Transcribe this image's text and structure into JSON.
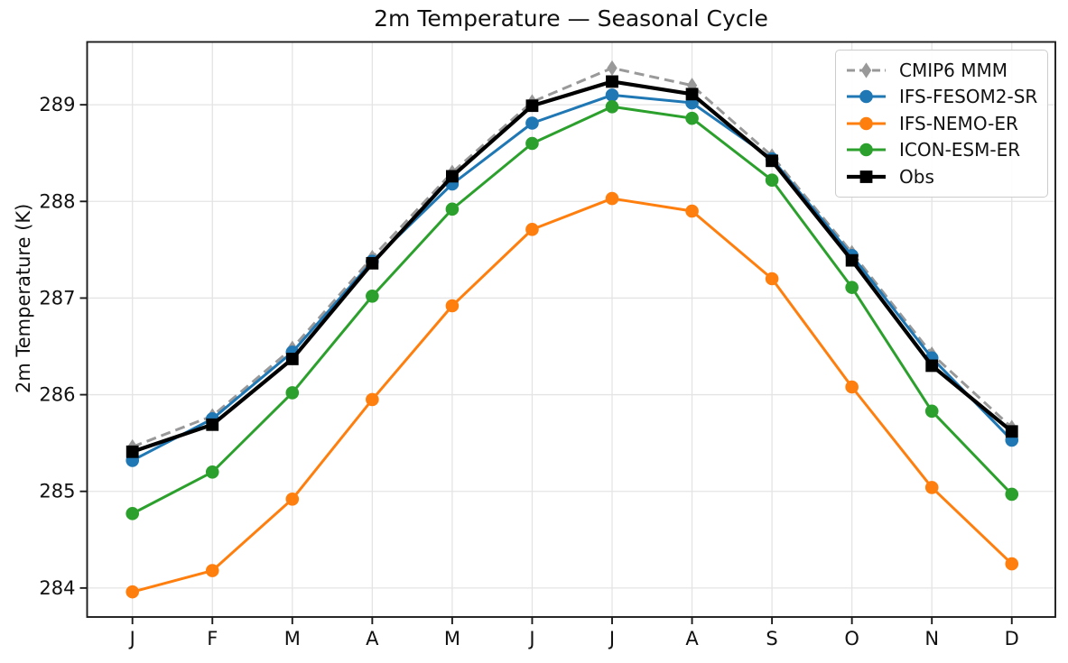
{
  "chart_data": {
    "type": "line",
    "title": "2m Temperature — Seasonal Cycle",
    "xlabel": "",
    "ylabel": "2m Temperature (K)",
    "categories": [
      "J",
      "F",
      "M",
      "A",
      "M",
      "J",
      "J",
      "A",
      "S",
      "O",
      "N",
      "D"
    ],
    "ylim": [
      283.7,
      289.65
    ],
    "yticks": [
      284,
      285,
      286,
      287,
      288,
      289
    ],
    "grid": true,
    "legend_position": "upper right",
    "series": [
      {
        "name": "CMIP6 MMM",
        "color": "#999999",
        "linestyle": "dashed",
        "marker": "diamond",
        "line_width": 3,
        "values": [
          285.46,
          285.78,
          286.48,
          287.42,
          288.3,
          289.03,
          289.38,
          289.2,
          288.47,
          287.47,
          286.42,
          285.66
        ]
      },
      {
        "name": "IFS-FESOM2-SR",
        "color": "#1f77b4",
        "linestyle": "solid",
        "marker": "circle",
        "line_width": 3,
        "values": [
          285.32,
          285.75,
          286.44,
          287.38,
          288.18,
          288.81,
          289.1,
          289.02,
          288.44,
          287.44,
          286.38,
          285.53
        ]
      },
      {
        "name": "IFS-NEMO-ER",
        "color": "#ff7f0e",
        "linestyle": "solid",
        "marker": "circle",
        "line_width": 3,
        "values": [
          283.96,
          284.18,
          284.92,
          285.95,
          286.92,
          287.71,
          288.03,
          287.9,
          287.2,
          286.08,
          285.04,
          284.25
        ]
      },
      {
        "name": "ICON-ESM-ER",
        "color": "#2ca02c",
        "linestyle": "solid",
        "marker": "circle",
        "line_width": 3,
        "values": [
          284.77,
          285.2,
          286.02,
          287.02,
          287.92,
          288.6,
          288.98,
          288.86,
          288.22,
          287.11,
          285.83,
          284.97
        ]
      },
      {
        "name": "Obs",
        "color": "#000000",
        "linestyle": "solid",
        "marker": "square",
        "line_width": 4.2,
        "values": [
          285.41,
          285.69,
          286.37,
          287.36,
          288.26,
          288.99,
          289.24,
          289.11,
          288.42,
          287.39,
          286.3,
          285.62
        ]
      }
    ],
    "axis_color": "#1c1c1c",
    "grid_color": "#e4e4e4"
  }
}
